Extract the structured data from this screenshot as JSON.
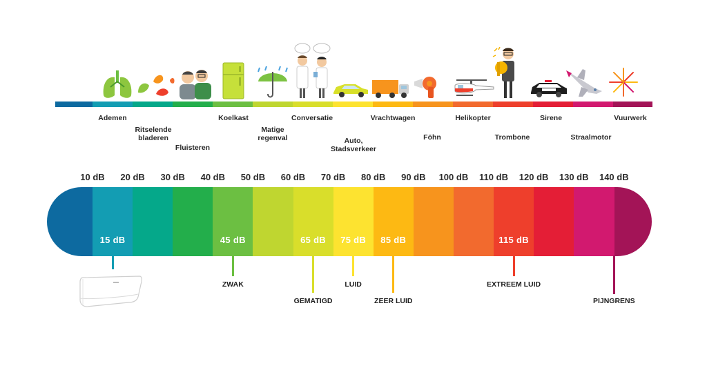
{
  "colors": {
    "segments": [
      "#0d6aa0",
      "#139db3",
      "#05a88a",
      "#23ae4b",
      "#6cbf42",
      "#bfd630",
      "#d9de2b",
      "#fde330",
      "#fdb913",
      "#f7941d",
      "#f26a2e",
      "#ee3f2c",
      "#e41e36",
      "#d2196f",
      "#a31457"
    ]
  },
  "db_scale": [
    "10 dB",
    "20 dB",
    "30 dB",
    "40 dB",
    "50 dB",
    "60 dB",
    "70 dB",
    "80 dB",
    "90 dB",
    "100 dB",
    "110 dB",
    "120 dB",
    "130 dB",
    "140 dB"
  ],
  "sources": [
    {
      "label": "Ademen"
    },
    {
      "label": "Ritselende\nbladeren"
    },
    {
      "label": "Fluisteren"
    },
    {
      "label": "Koelkast"
    },
    {
      "label": "Matige\nregenval"
    },
    {
      "label": "Conversatie"
    },
    {
      "label": "Auto,\nStadsverkeer"
    },
    {
      "label": "Vrachtwagen"
    },
    {
      "label": "Föhn"
    },
    {
      "label": "Helikopter"
    },
    {
      "label": "Trombone"
    },
    {
      "label": "Sirene"
    },
    {
      "label": "Straalmotor"
    },
    {
      "label": "Vuurwerk"
    }
  ],
  "band_values": [
    "15 dB",
    "45 dB",
    "65 dB",
    "75 dB",
    "85 dB",
    "115 dB"
  ],
  "categories": [
    {
      "label": "ZWAK",
      "db": 45
    },
    {
      "label": "GEMATIGD",
      "db": 65
    },
    {
      "label": "LUID",
      "db": 75
    },
    {
      "label": "ZEER LUID",
      "db": 85
    },
    {
      "label": "EXTREEM LUID",
      "db": 115
    },
    {
      "label": "PIJNGRENS",
      "db": 140
    }
  ],
  "icons": [
    "lungs-icon",
    "leaves-icon",
    "whispering-people-icon",
    "refrigerator-icon",
    "umbrella-rain-icon",
    "conversation-people-icon",
    "car-icon",
    "truck-icon",
    "hair-dryer-icon",
    "helicopter-icon",
    "trombone-player-icon",
    "police-car-icon",
    "jet-icon",
    "fireworks-icon",
    "air-conditioner-icon"
  ]
}
